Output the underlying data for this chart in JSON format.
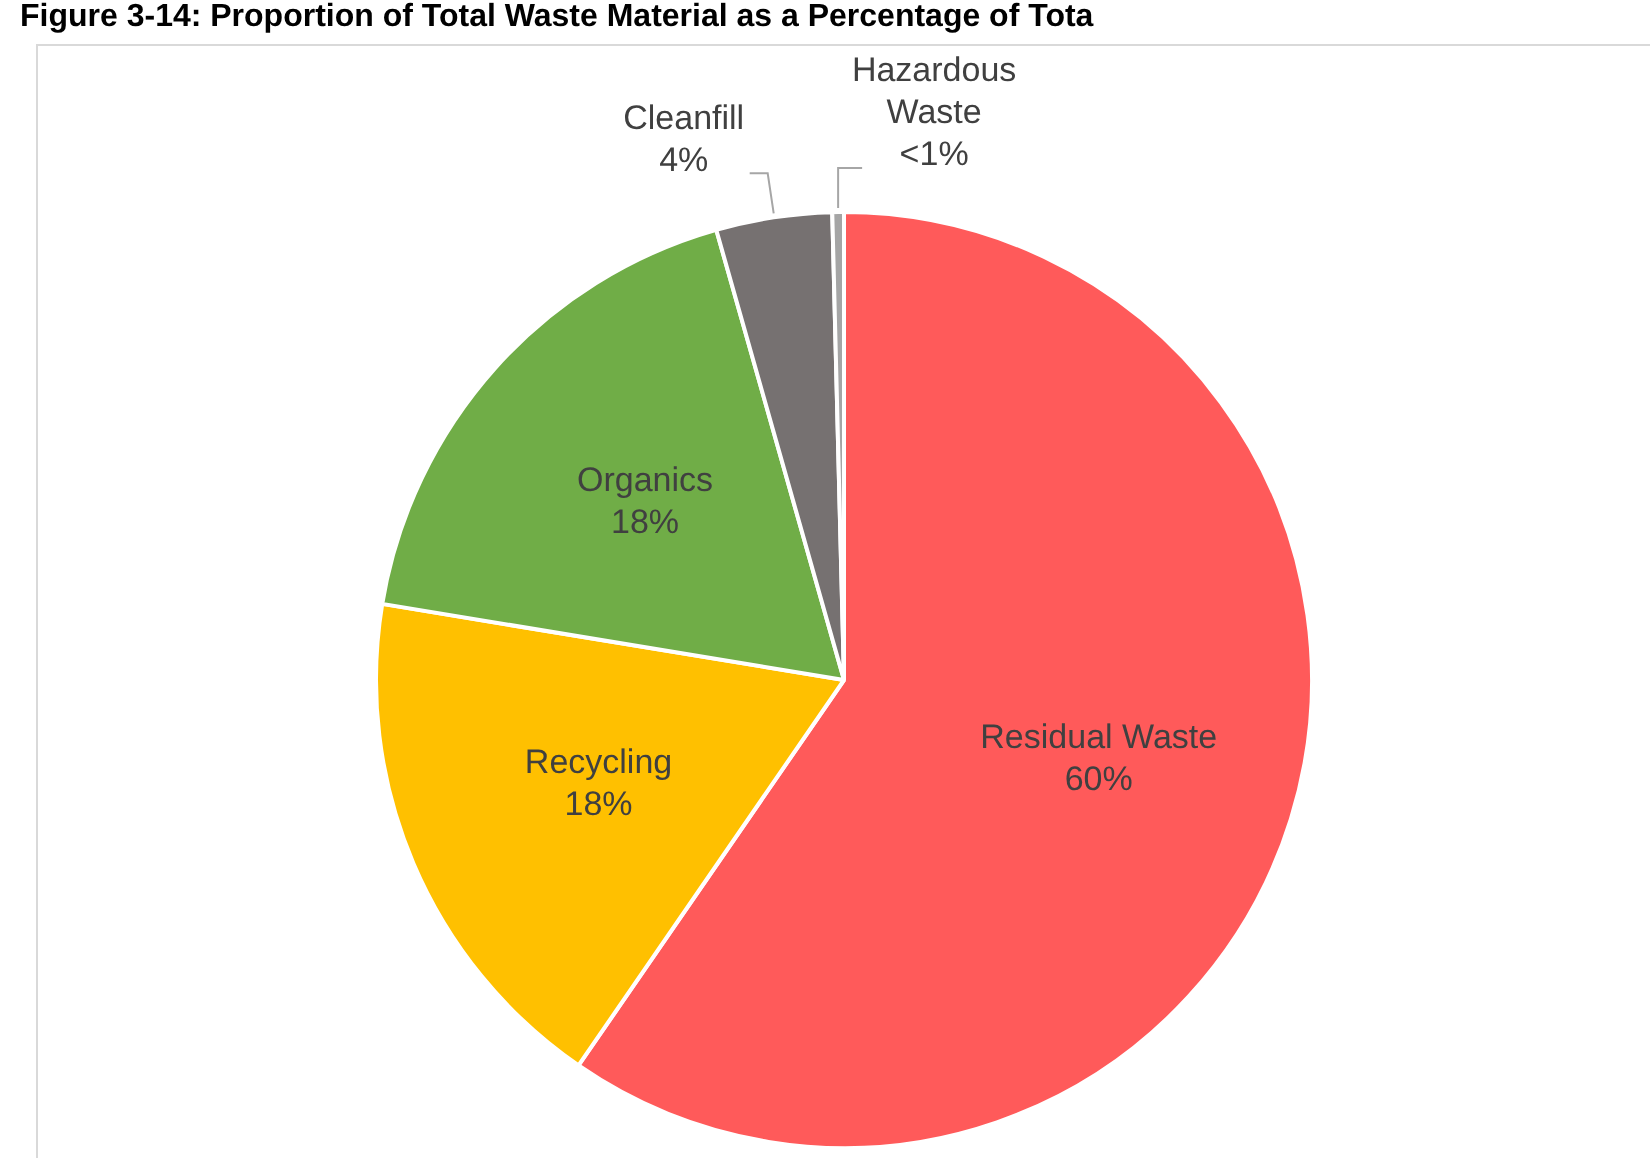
{
  "chart_data": {
    "type": "pie",
    "title": "Figure 3-14: Proportion of Total Waste Material as a Percentage of Tota",
    "categories": [
      "Residual Waste",
      "Recycling",
      "Organics",
      "Cleanfill",
      "Hazardous Waste"
    ],
    "values": [
      59.6,
      18,
      18,
      4,
      0.4
    ],
    "colors": [
      "#ff5a5a",
      "#ffc000",
      "#70ad47",
      "#767171",
      "#a5a5a5"
    ],
    "value_labels": [
      "60%",
      "18%",
      "18%",
      "4%",
      "<1%"
    ],
    "legend": false
  }
}
